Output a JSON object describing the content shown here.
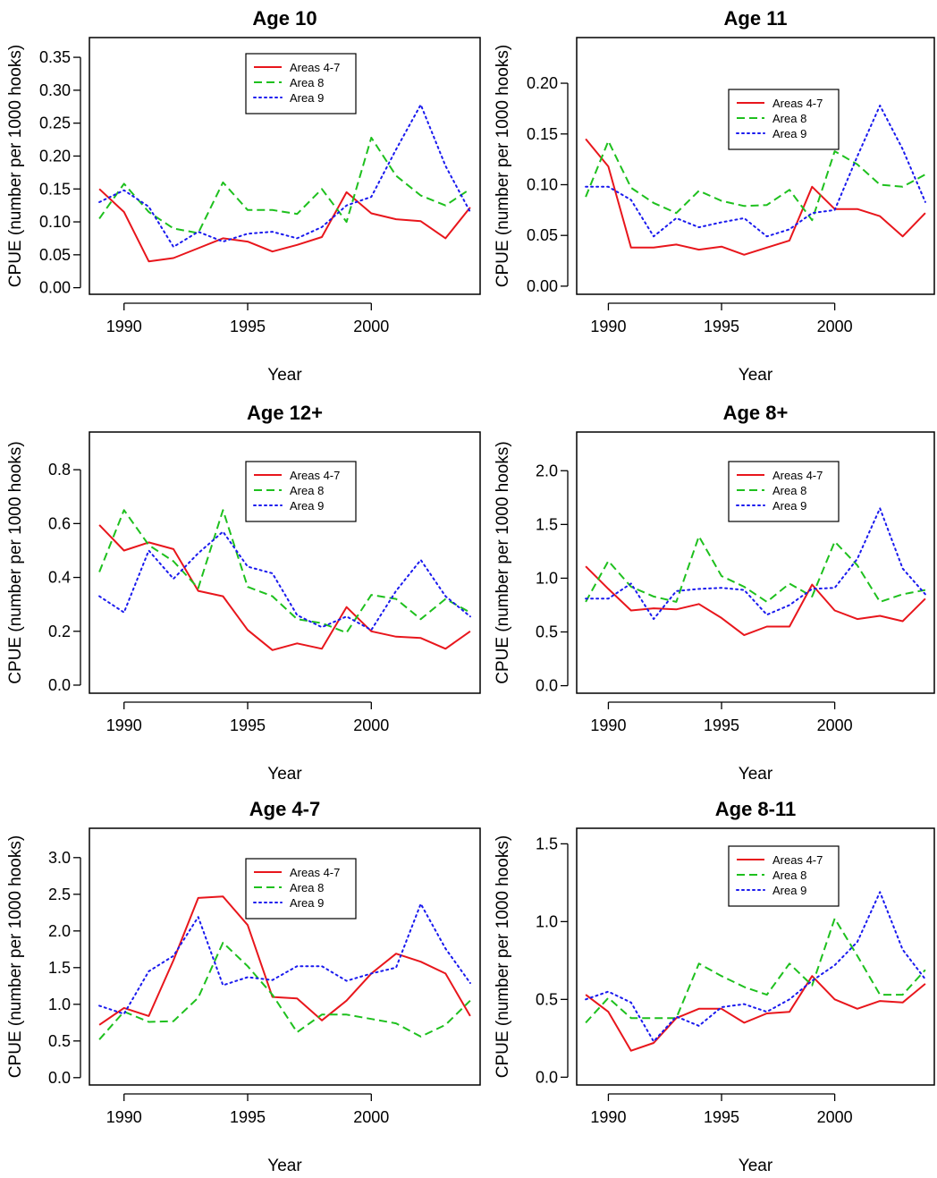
{
  "chart_data": [
    {
      "type": "line",
      "title": "Age 10",
      "xlabel": "Year",
      "ylabel": "CPUE (number per 1000 hooks)",
      "x": [
        1989,
        1990,
        1991,
        1992,
        1993,
        1994,
        1995,
        1996,
        1997,
        1998,
        1999,
        2000,
        2001,
        2002,
        2003,
        2004
      ],
      "xticks": [
        "1990",
        "1995",
        "2000"
      ],
      "xlim": [
        1988.6,
        2004.4
      ],
      "ylim": [
        -0.01,
        0.38
      ],
      "yticks": [
        "0.00",
        "0.05",
        "0.10",
        "0.15",
        "0.20",
        "0.25",
        "0.30",
        "0.35"
      ],
      "series": [
        {
          "name": "Areas 4-7",
          "color": "#e8161c",
          "dash": "solid",
          "values": [
            0.15,
            0.115,
            0.04,
            0.045,
            0.06,
            0.075,
            0.07,
            0.055,
            0.065,
            0.077,
            0.145,
            0.113,
            0.104,
            0.101,
            0.075,
            0.122
          ]
        },
        {
          "name": "Area 8",
          "color": "#1ec01e",
          "dash": "dashed",
          "values": [
            0.105,
            0.158,
            0.115,
            0.09,
            0.083,
            0.16,
            0.118,
            0.118,
            0.112,
            0.15,
            0.1,
            0.228,
            0.17,
            0.14,
            0.125,
            0.15
          ]
        },
        {
          "name": "Area 9",
          "color": "#1a1aee",
          "dash": "dotted",
          "values": [
            0.13,
            0.148,
            0.123,
            0.062,
            0.085,
            0.07,
            0.082,
            0.085,
            0.075,
            0.092,
            0.125,
            0.138,
            0.21,
            0.278,
            0.185,
            0.115
          ]
        }
      ]
    },
    {
      "type": "line",
      "title": "Age 11",
      "xlabel": "Year",
      "ylabel": "CPUE (number per 1000 hooks)",
      "x": [
        1989,
        1990,
        1991,
        1992,
        1993,
        1994,
        1995,
        1996,
        1997,
        1998,
        1999,
        2000,
        2001,
        2002,
        2003,
        2004
      ],
      "xticks": [
        "1990",
        "1995",
        "2000"
      ],
      "xlim": [
        1988.6,
        2004.4
      ],
      "ylim": [
        -0.008,
        0.245
      ],
      "yticks": [
        "0.00",
        "0.05",
        "0.10",
        "0.15",
        "0.20"
      ],
      "series": [
        {
          "name": "Areas 4-7",
          "color": "#e8161c",
          "dash": "solid",
          "values": [
            0.145,
            0.118,
            0.038,
            0.038,
            0.041,
            0.036,
            0.039,
            0.031,
            0.038,
            0.045,
            0.098,
            0.076,
            0.076,
            0.069,
            0.049,
            0.072
          ]
        },
        {
          "name": "Area 8",
          "color": "#1ec01e",
          "dash": "dashed",
          "values": [
            0.088,
            0.143,
            0.097,
            0.082,
            0.072,
            0.094,
            0.084,
            0.079,
            0.08,
            0.095,
            0.065,
            0.133,
            0.12,
            0.1,
            0.098,
            0.11
          ]
        },
        {
          "name": "Area 9",
          "color": "#1a1aee",
          "dash": "dotted",
          "values": [
            0.098,
            0.098,
            0.085,
            0.049,
            0.067,
            0.058,
            0.063,
            0.067,
            0.049,
            0.056,
            0.072,
            0.075,
            0.128,
            0.178,
            0.135,
            0.083
          ]
        }
      ]
    },
    {
      "type": "line",
      "title": "Age 12+",
      "xlabel": "Year",
      "ylabel": "CPUE (number per 1000 hooks)",
      "x": [
        1989,
        1990,
        1991,
        1992,
        1993,
        1994,
        1995,
        1996,
        1997,
        1998,
        1999,
        2000,
        2001,
        2002,
        2003,
        2004
      ],
      "xticks": [
        "1990",
        "1995",
        "2000"
      ],
      "xlim": [
        1988.6,
        2004.4
      ],
      "ylim": [
        -0.03,
        0.94
      ],
      "yticks": [
        "0.0",
        "0.2",
        "0.4",
        "0.6",
        "0.8"
      ],
      "series": [
        {
          "name": "Areas 4-7",
          "color": "#e8161c",
          "dash": "solid",
          "values": [
            0.595,
            0.5,
            0.53,
            0.505,
            0.35,
            0.33,
            0.205,
            0.13,
            0.155,
            0.135,
            0.29,
            0.2,
            0.18,
            0.175,
            0.135,
            0.2
          ]
        },
        {
          "name": "Area 8",
          "color": "#1ec01e",
          "dash": "dashed",
          "values": [
            0.42,
            0.65,
            0.52,
            0.46,
            0.36,
            0.65,
            0.365,
            0.33,
            0.245,
            0.23,
            0.195,
            0.335,
            0.32,
            0.245,
            0.32,
            0.27
          ]
        },
        {
          "name": "Area 9",
          "color": "#1a1aee",
          "dash": "dotted",
          "values": [
            0.33,
            0.27,
            0.5,
            0.395,
            0.49,
            0.57,
            0.44,
            0.415,
            0.26,
            0.215,
            0.255,
            0.205,
            0.35,
            0.465,
            0.33,
            0.255
          ]
        }
      ]
    },
    {
      "type": "line",
      "title": "Age 8+",
      "xlabel": "Year",
      "ylabel": "CPUE (number per 1000 hooks)",
      "x": [
        1989,
        1990,
        1991,
        1992,
        1993,
        1994,
        1995,
        1996,
        1997,
        1998,
        1999,
        2000,
        2001,
        2002,
        2003,
        2004
      ],
      "xticks": [
        "1990",
        "1995",
        "2000"
      ],
      "xlim": [
        1988.6,
        2004.4
      ],
      "ylim": [
        -0.07,
        2.36
      ],
      "yticks": [
        "0.0",
        "0.5",
        "1.0",
        "1.5",
        "2.0"
      ],
      "series": [
        {
          "name": "Areas 4-7",
          "color": "#e8161c",
          "dash": "solid",
          "values": [
            1.11,
            0.9,
            0.7,
            0.72,
            0.71,
            0.76,
            0.63,
            0.47,
            0.55,
            0.55,
            0.94,
            0.7,
            0.62,
            0.65,
            0.6,
            0.81
          ]
        },
        {
          "name": "Area 8",
          "color": "#1ec01e",
          "dash": "dashed",
          "values": [
            0.78,
            1.16,
            0.92,
            0.83,
            0.78,
            1.39,
            1.02,
            0.92,
            0.78,
            0.95,
            0.83,
            1.34,
            1.12,
            0.78,
            0.85,
            0.89
          ]
        },
        {
          "name": "Area 9",
          "color": "#1a1aee",
          "dash": "dotted",
          "values": [
            0.81,
            0.81,
            0.95,
            0.62,
            0.88,
            0.9,
            0.91,
            0.89,
            0.66,
            0.75,
            0.9,
            0.91,
            1.18,
            1.65,
            1.09,
            0.85
          ]
        }
      ]
    },
    {
      "type": "line",
      "title": "Age 4-7",
      "xlabel": "Year",
      "ylabel": "CPUE (number per 1000 hooks)",
      "x": [
        1989,
        1990,
        1991,
        1992,
        1993,
        1994,
        1995,
        1996,
        1997,
        1998,
        1999,
        2000,
        2001,
        2002,
        2003,
        2004
      ],
      "xticks": [
        "1990",
        "1995",
        "2000"
      ],
      "xlim": [
        1988.6,
        2004.4
      ],
      "ylim": [
        -0.1,
        3.4
      ],
      "yticks": [
        "0.0",
        "0.5",
        "1.0",
        "1.5",
        "2.0",
        "2.5",
        "3.0"
      ],
      "series": [
        {
          "name": "Areas 4-7",
          "color": "#e8161c",
          "dash": "solid",
          "values": [
            0.72,
            0.95,
            0.84,
            1.6,
            2.45,
            2.47,
            2.08,
            1.1,
            1.08,
            0.78,
            1.05,
            1.42,
            1.69,
            1.58,
            1.42,
            0.84
          ]
        },
        {
          "name": "Area 8",
          "color": "#1ec01e",
          "dash": "dashed",
          "values": [
            0.52,
            0.9,
            0.76,
            0.77,
            1.09,
            1.84,
            1.52,
            1.13,
            0.62,
            0.86,
            0.86,
            0.8,
            0.74,
            0.56,
            0.72,
            1.05
          ]
        },
        {
          "name": "Area 9",
          "color": "#1a1aee",
          "dash": "dotted",
          "values": [
            0.98,
            0.87,
            1.45,
            1.66,
            2.19,
            1.26,
            1.37,
            1.33,
            1.52,
            1.52,
            1.32,
            1.42,
            1.5,
            2.37,
            1.76,
            1.29
          ]
        }
      ]
    },
    {
      "type": "line",
      "title": "Age 8-11",
      "xlabel": "Year",
      "ylabel": "CPUE (number per 1000 hooks)",
      "x": [
        1989,
        1990,
        1991,
        1992,
        1993,
        1994,
        1995,
        1996,
        1997,
        1998,
        1999,
        2000,
        2001,
        2002,
        2003,
        2004
      ],
      "xticks": [
        "1990",
        "1995",
        "2000"
      ],
      "xlim": [
        1988.6,
        2004.4
      ],
      "ylim": [
        -0.05,
        1.6
      ],
      "yticks": [
        "0.0",
        "0.5",
        "1.0",
        "1.5"
      ],
      "series": [
        {
          "name": "Areas 4-7",
          "color": "#e8161c",
          "dash": "solid",
          "values": [
            0.53,
            0.42,
            0.17,
            0.22,
            0.38,
            0.44,
            0.44,
            0.35,
            0.41,
            0.42,
            0.65,
            0.5,
            0.44,
            0.49,
            0.48,
            0.6
          ]
        },
        {
          "name": "Area 8",
          "color": "#1ec01e",
          "dash": "dashed",
          "values": [
            0.35,
            0.51,
            0.38,
            0.38,
            0.38,
            0.73,
            0.65,
            0.58,
            0.53,
            0.73,
            0.59,
            1.02,
            0.78,
            0.53,
            0.53,
            0.69
          ]
        },
        {
          "name": "Area 9",
          "color": "#1a1aee",
          "dash": "dotted",
          "values": [
            0.5,
            0.55,
            0.48,
            0.23,
            0.39,
            0.33,
            0.45,
            0.47,
            0.42,
            0.5,
            0.62,
            0.72,
            0.87,
            1.19,
            0.82,
            0.63
          ]
        }
      ]
    }
  ]
}
